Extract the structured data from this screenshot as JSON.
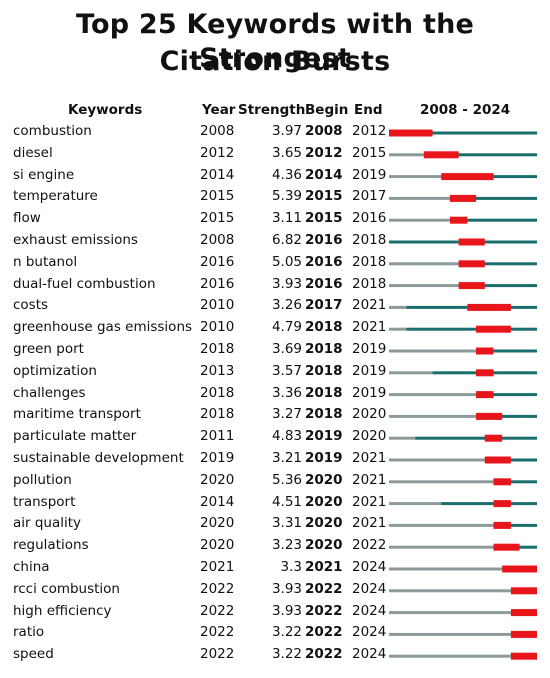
{
  "chart_data": {
    "type": "table",
    "title_line1": "Top 25 Keywords with the Strongest",
    "title_line2": "Citation Bursts",
    "columns": [
      "Keywords",
      "Year",
      "Strength",
      "Begin",
      "End",
      "2008 - 2024"
    ],
    "range_start": 2008,
    "range_end": 2024,
    "rows": [
      {
        "keyword": "combustion",
        "year": "2008",
        "strength": "3.97",
        "begin": "2008",
        "end": "2012"
      },
      {
        "keyword": "diesel",
        "year": "2012",
        "strength": "3.65",
        "begin": "2012",
        "end": "2015"
      },
      {
        "keyword": "si engine",
        "year": "2014",
        "strength": "4.36",
        "begin": "2014",
        "end": "2019"
      },
      {
        "keyword": "temperature",
        "year": "2015",
        "strength": "5.39",
        "begin": "2015",
        "end": "2017"
      },
      {
        "keyword": "flow",
        "year": "2015",
        "strength": "3.11",
        "begin": "2015",
        "end": "2016"
      },
      {
        "keyword": "exhaust emissions",
        "year": "2008",
        "strength": "6.82",
        "begin": "2016",
        "end": "2018"
      },
      {
        "keyword": "n butanol",
        "year": "2016",
        "strength": "5.05",
        "begin": "2016",
        "end": "2018"
      },
      {
        "keyword": "dual-fuel combustion",
        "year": "2016",
        "strength": "3.93",
        "begin": "2016",
        "end": "2018"
      },
      {
        "keyword": "costs",
        "year": "2010",
        "strength": "3.26",
        "begin": "2017",
        "end": "2021"
      },
      {
        "keyword": "greenhouse gas emissions",
        "year": "2010",
        "strength": "4.79",
        "begin": "2018",
        "end": "2021"
      },
      {
        "keyword": "green port",
        "year": "2018",
        "strength": "3.69",
        "begin": "2018",
        "end": "2019"
      },
      {
        "keyword": "optimization",
        "year": "2013",
        "strength": "3.57",
        "begin": "2018",
        "end": "2019"
      },
      {
        "keyword": "challenges",
        "year": "2018",
        "strength": "3.36",
        "begin": "2018",
        "end": "2019"
      },
      {
        "keyword": "maritime transport",
        "year": "2018",
        "strength": "3.27",
        "begin": "2018",
        "end": "2020"
      },
      {
        "keyword": "particulate matter",
        "year": "2011",
        "strength": "4.83",
        "begin": "2019",
        "end": "2020"
      },
      {
        "keyword": "sustainable development",
        "year": "2019",
        "strength": "3.21",
        "begin": "2019",
        "end": "2021"
      },
      {
        "keyword": "pollution",
        "year": "2020",
        "strength": "5.36",
        "begin": "2020",
        "end": "2021"
      },
      {
        "keyword": "transport",
        "year": "2014",
        "strength": "4.51",
        "begin": "2020",
        "end": "2021"
      },
      {
        "keyword": "air quality",
        "year": "2020",
        "strength": "3.31",
        "begin": "2020",
        "end": "2021"
      },
      {
        "keyword": "regulations",
        "year": "2020",
        "strength": "3.23",
        "begin": "2020",
        "end": "2022"
      },
      {
        "keyword": "china",
        "year": "2021",
        "strength": "3.3",
        "begin": "2021",
        "end": "2024"
      },
      {
        "keyword": "rcci combustion",
        "year": "2022",
        "strength": "3.93",
        "begin": "2022",
        "end": "2024"
      },
      {
        "keyword": "high efficiency",
        "year": "2022",
        "strength": "3.93",
        "begin": "2022",
        "end": "2024"
      },
      {
        "keyword": "ratio",
        "year": "2022",
        "strength": "3.22",
        "begin": "2022",
        "end": "2024"
      },
      {
        "keyword": "speed",
        "year": "2022",
        "strength": "3.22",
        "begin": "2022",
        "end": "2024"
      }
    ],
    "colors": {
      "before_first_year": "#8c9a9a",
      "active": "#1a6e6e",
      "burst": "#e8151b"
    }
  }
}
